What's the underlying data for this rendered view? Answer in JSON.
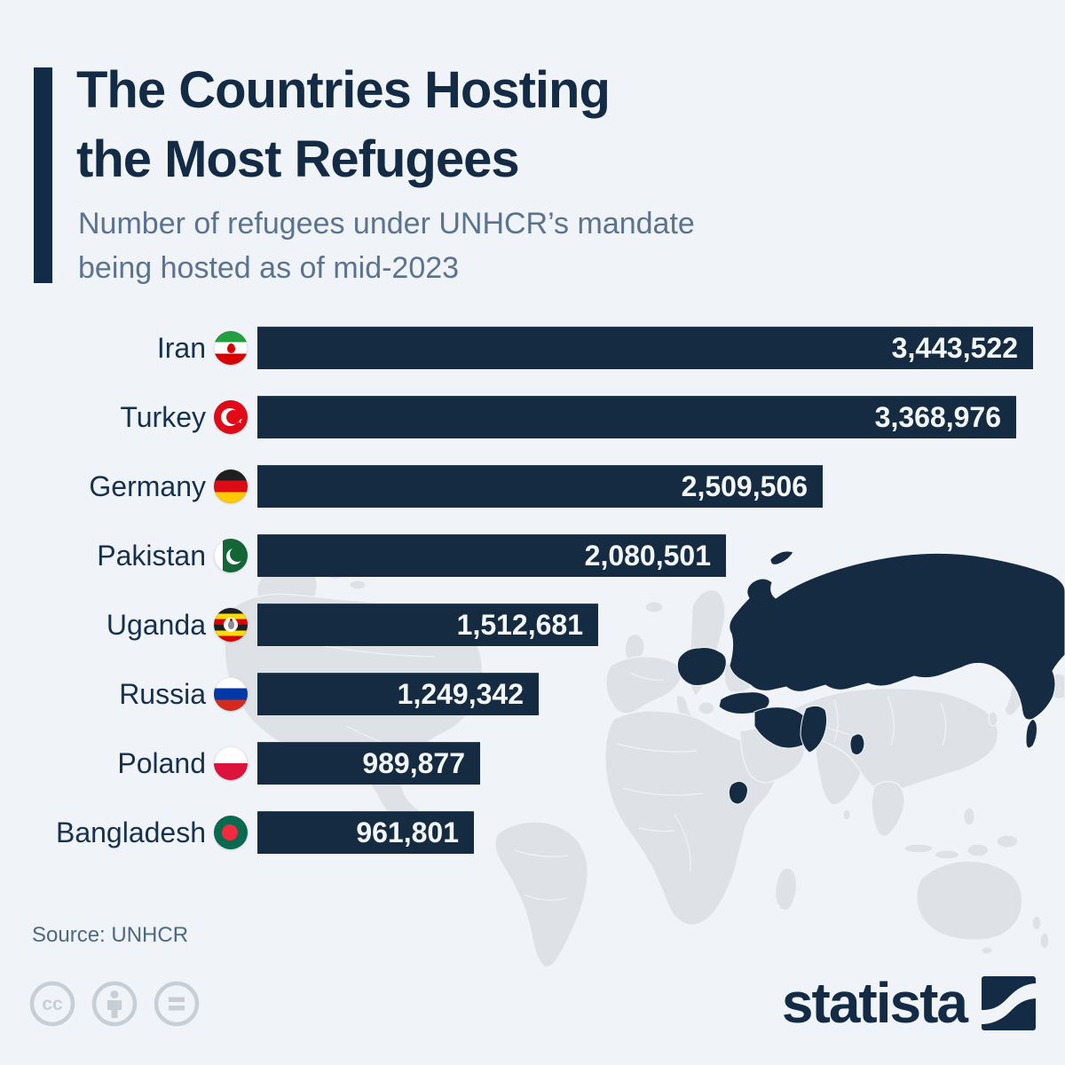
{
  "header": {
    "title_line1": "The Countries Hosting",
    "title_line2": "the Most Refugees",
    "subtitle_line1": "Number of refugees under UNHCR’s mandate",
    "subtitle_line2": "being hosted as of mid-2023"
  },
  "chart_data": {
    "type": "bar",
    "orientation": "horizontal",
    "title": "The Countries Hosting the Most Refugees",
    "categories": [
      "Iran",
      "Turkey",
      "Germany",
      "Pakistan",
      "Uganda",
      "Russia",
      "Poland",
      "Bangladesh"
    ],
    "values": [
      3443522,
      3368976,
      2509506,
      2080501,
      1512681,
      1249342,
      989877,
      961801
    ],
    "value_labels": [
      "3,443,522",
      "3,368,976",
      "2,509,506",
      "2,080,501",
      "1,512,681",
      "1,249,342",
      "989,877",
      "961,801"
    ],
    "flags": [
      "iran",
      "turkey",
      "germany",
      "pakistan",
      "uganda",
      "russia",
      "poland",
      "bangladesh"
    ],
    "max_value": 3443522,
    "bar_color": "#152b42",
    "value_text_color": "#f4f7fa",
    "label_color": "#16304f",
    "value_label_position": "inside-right",
    "grid": false
  },
  "map": {
    "land_color": "#dee2e6",
    "highlight_color": "#152b42",
    "highlighted_countries": [
      "Russia",
      "Germany",
      "Poland",
      "Turkey",
      "Iran",
      "Pakistan",
      "Bangladesh",
      "Uganda"
    ]
  },
  "footer": {
    "source": "Source: UNHCR",
    "license_icons": [
      "cc-icon",
      "attribution-person-icon",
      "equals-icon"
    ],
    "brand": "statista"
  },
  "colors": {
    "background": "#f0f4f8",
    "navy": "#142b45",
    "subtitle": "#5b7390",
    "source_text": "#4d6885",
    "license_icon": "#c7ced6"
  }
}
